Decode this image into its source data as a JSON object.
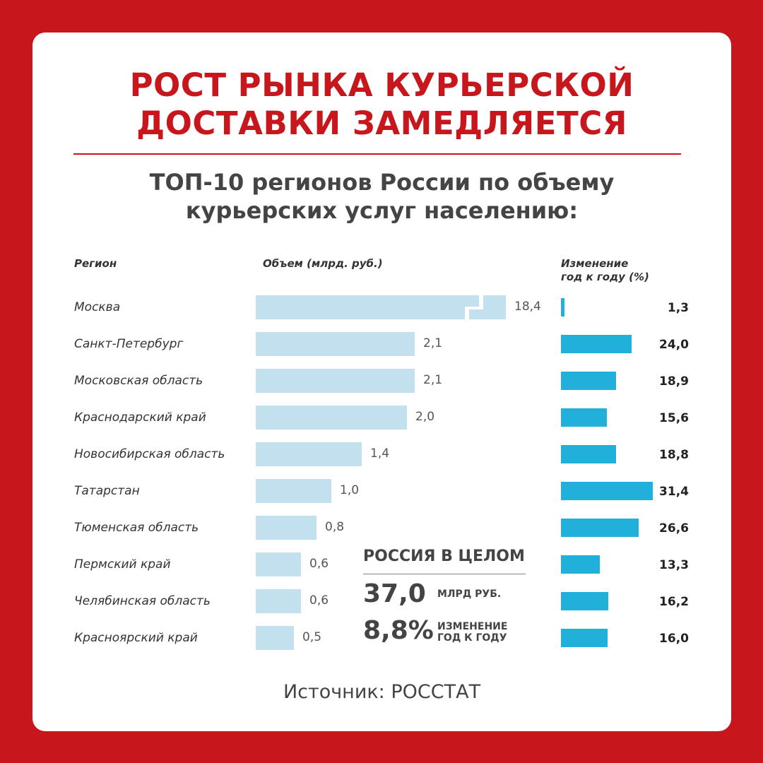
{
  "header": {
    "title_line1": "РОСТ РЫНКА КУРЬЕРСКОЙ",
    "title_line2": "ДОСТАВКИ ЗАМЕДЛЯЕТСЯ",
    "subtitle_line1": "ТОП-10 регионов России по объему",
    "subtitle_line2": "курьерских услуг населению:"
  },
  "columns": {
    "region": "Регион",
    "volume": "Объем (млрд. руб.)",
    "change_line1": "Изменение",
    "change_line2": "год к году (%)"
  },
  "colors": {
    "background": "#c8161d",
    "volume_bar": "#c2e0ee",
    "change_bar": "#20b0da",
    "title": "#c8161d"
  },
  "chart_data": {
    "type": "bar",
    "categories": [
      "Москва",
      "Санкт-Петербург",
      "Московская область",
      "Краснодарский край",
      "Новосибирская область",
      "Татарстан",
      "Тюменская область",
      "Пермский край",
      "Челябинская область",
      "Красноярский край"
    ],
    "series": [
      {
        "name": "Объем (млрд. руб.)",
        "values": [
          18.4,
          2.1,
          2.1,
          2.0,
          1.4,
          1.0,
          0.8,
          0.6,
          0.6,
          0.5
        ],
        "labels": [
          "18,4",
          "2,1",
          "2,1",
          "2,0",
          "1,4",
          "1,0",
          "0,8",
          "0,6",
          "0,6",
          "0,5"
        ],
        "axis_break": true
      },
      {
        "name": "Изменение год к году (%)",
        "values": [
          1.3,
          24.0,
          18.9,
          15.6,
          18.8,
          31.4,
          26.6,
          13.3,
          16.2,
          16.0
        ],
        "labels": [
          "1,3",
          "24,0",
          "18,9",
          "15,6",
          "18,8",
          "31,4",
          "26,6",
          "13,3",
          "16,2",
          "16,0"
        ]
      }
    ],
    "orientation": "horizontal",
    "grid": false,
    "legend": "none"
  },
  "totals": {
    "heading": "РОССИЯ В ЦЕЛОМ",
    "volume_value": "37,0",
    "volume_unit": "МЛРД РУБ.",
    "change_value": "8,8%",
    "change_label_line1": "ИЗМЕНЕНИЕ",
    "change_label_line2": "ГОД К ГОДУ"
  },
  "footer": {
    "source": "Источник: РОССТАТ"
  }
}
